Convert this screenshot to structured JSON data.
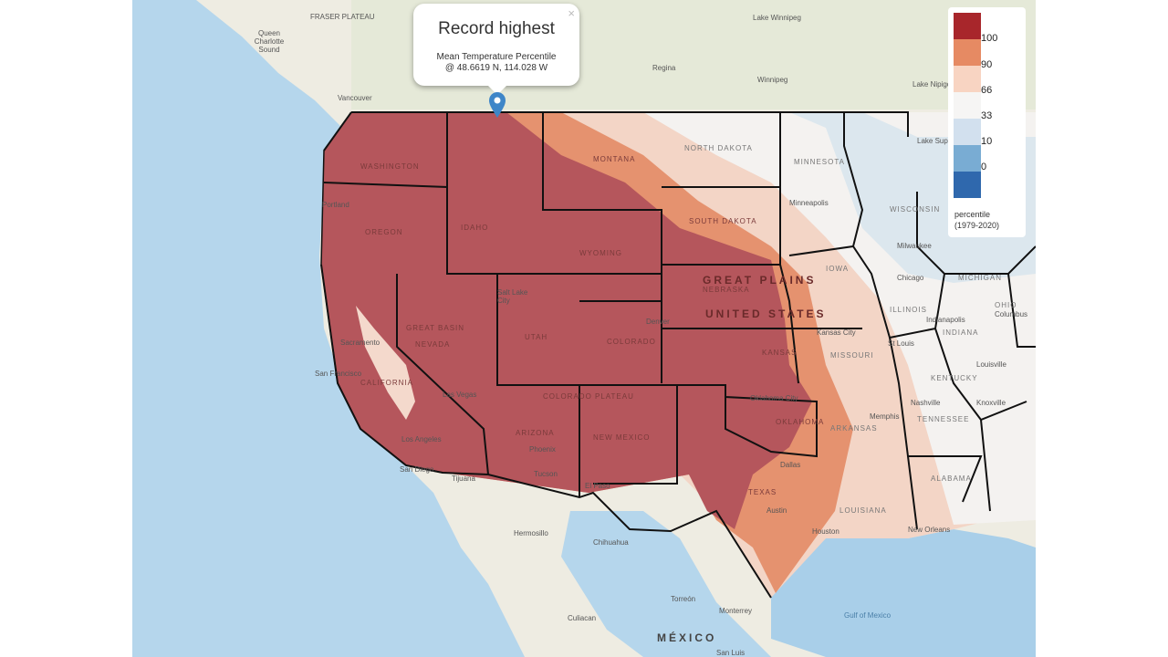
{
  "popup": {
    "title": "Record highest",
    "subtitle": "Mean Temperature Percentile",
    "coords": "@ 48.6619 N, 114.028 W",
    "close": "×"
  },
  "legend": {
    "colors": [
      "#a8262b",
      "#e68a63",
      "#f8d4c2",
      "#f6f5f4",
      "#d2e0ee",
      "#79acd3",
      "#2f68ad"
    ],
    "labels": [
      "100",
      "90",
      "66",
      "33",
      "10",
      "0"
    ],
    "title": "percentile",
    "period": "(1979-2020)"
  },
  "colors": {
    "record": "#b5565c",
    "high": "#e5926f",
    "above": "#f3c9b5",
    "water": "#b5d6ec",
    "land": "#f1efe6",
    "marker": "#3e86c8"
  },
  "states": [
    "WASHINGTON",
    "OREGON",
    "IDAHO",
    "MONTANA",
    "WYOMING",
    "NEVADA",
    "UTAH",
    "COLORADO",
    "ARIZONA",
    "NEW MEXICO",
    "NORTH DAKOTA",
    "SOUTH DAKOTA",
    "NEBRASKA",
    "KANSAS",
    "OKLAHOMA",
    "TEXAS",
    "MINNESOTA",
    "IOWA",
    "MISSOURI",
    "ARKANSAS",
    "LOUISIANA",
    "WISCONSIN",
    "ILLINOIS",
    "INDIANA",
    "OHIO",
    "KENTUCKY",
    "TENNESSEE",
    "ALABAMA",
    "MICHIGAN",
    "CALIFORNIA"
  ],
  "cities": [
    "Vancouver",
    "Portland",
    "Sacramento",
    "San Francisco",
    "Los Angeles",
    "San Diego",
    "Tijuana",
    "Las Vegas",
    "Phoenix",
    "Tucson",
    "El Paso",
    "Salt Lake City",
    "Denver",
    "Regina",
    "Winnipeg",
    "Minneapolis",
    "Kansas City",
    "Oklahoma City",
    "Dallas",
    "Austin",
    "Houston",
    "Memphis",
    "Nashville",
    "St Louis",
    "Chicago",
    "Milwaukee",
    "Indianapolis",
    "Columbus",
    "Louisville",
    "Knoxville",
    "New Orleans",
    "Hermosillo",
    "Chihuahua",
    "Monterrey",
    "Torreón",
    "Culiacan",
    "San Luis"
  ],
  "regions": [
    "FRASER PLATEAU",
    "GREAT PLAINS",
    "UNITED STATES",
    "GREAT BASIN",
    "COLORADO PLATEAU",
    "MÉXICO",
    "Gulf of Mexico",
    "Queen Charlotte Sound",
    "Lake Winnipeg",
    "Lake Nipigon",
    "Lake Superior"
  ]
}
